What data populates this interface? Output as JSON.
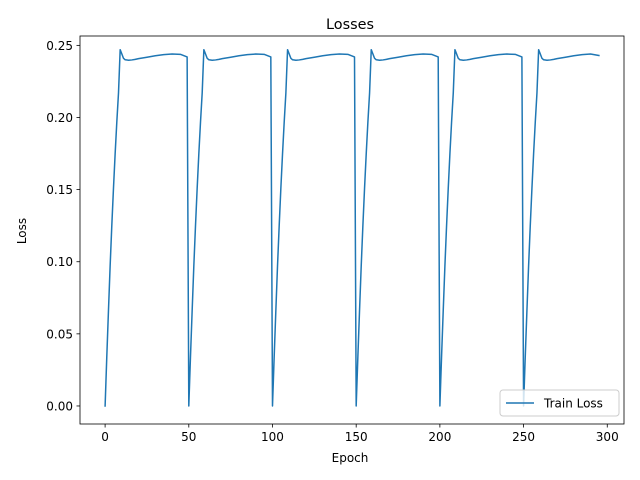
{
  "chart_data": {
    "type": "line",
    "title": "Losses",
    "xlabel": "Epoch",
    "ylabel": "Loss",
    "xlim": [
      -15,
      310
    ],
    "ylim": [
      -0.0125,
      0.2565
    ],
    "xticks": [
      0,
      50,
      100,
      150,
      200,
      250,
      300
    ],
    "yticks": [
      0.0,
      0.05,
      0.1,
      0.15,
      0.2,
      0.25
    ],
    "ytick_labels": [
      "0.00",
      "0.05",
      "0.10",
      "0.15",
      "0.20",
      "0.25"
    ],
    "grid": false,
    "legend_position": "lower-right",
    "series": [
      {
        "name": "Train Loss",
        "color": "#1f77b4",
        "x": [
          0,
          1,
          2,
          3,
          4,
          5,
          6,
          7,
          8,
          9,
          10,
          11,
          12,
          14,
          16,
          18,
          20,
          25,
          30,
          35,
          40,
          45,
          49,
          50,
          51,
          52,
          53,
          54,
          55,
          56,
          57,
          58,
          59,
          60,
          61,
          62,
          64,
          66,
          68,
          70,
          75,
          80,
          85,
          90,
          95,
          99,
          100,
          101,
          102,
          103,
          104,
          105,
          106,
          107,
          108,
          109,
          110,
          111,
          112,
          114,
          116,
          118,
          120,
          125,
          130,
          135,
          140,
          145,
          149,
          150,
          151,
          152,
          153,
          154,
          155,
          156,
          157,
          158,
          159,
          160,
          161,
          162,
          164,
          166,
          168,
          170,
          175,
          180,
          185,
          190,
          195,
          199,
          200,
          201,
          202,
          203,
          204,
          205,
          206,
          207,
          208,
          209,
          210,
          211,
          212,
          214,
          216,
          218,
          220,
          225,
          230,
          235,
          240,
          245,
          249,
          250,
          251,
          252,
          253,
          254,
          255,
          256,
          257,
          258,
          259,
          260,
          261,
          262,
          264,
          266,
          268,
          270,
          275,
          280,
          285,
          290,
          295
        ],
        "y": [
          0.0,
          0.034,
          0.066,
          0.097,
          0.125,
          0.151,
          0.175,
          0.197,
          0.217,
          0.247,
          0.244,
          0.241,
          0.24,
          0.2397,
          0.2399,
          0.2403,
          0.2408,
          0.2418,
          0.2428,
          0.2436,
          0.244,
          0.2438,
          0.242,
          0.0,
          0.034,
          0.066,
          0.097,
          0.125,
          0.151,
          0.175,
          0.197,
          0.217,
          0.247,
          0.244,
          0.241,
          0.24,
          0.2397,
          0.2399,
          0.2403,
          0.2408,
          0.2418,
          0.2428,
          0.2436,
          0.244,
          0.2438,
          0.242,
          0.0,
          0.034,
          0.066,
          0.097,
          0.125,
          0.151,
          0.175,
          0.197,
          0.217,
          0.247,
          0.244,
          0.241,
          0.24,
          0.2397,
          0.2399,
          0.2403,
          0.2408,
          0.2418,
          0.2428,
          0.2436,
          0.244,
          0.2438,
          0.242,
          0.0,
          0.034,
          0.066,
          0.097,
          0.125,
          0.151,
          0.175,
          0.197,
          0.217,
          0.247,
          0.244,
          0.241,
          0.24,
          0.2397,
          0.2399,
          0.2403,
          0.2408,
          0.2418,
          0.2428,
          0.2436,
          0.244,
          0.2438,
          0.242,
          0.0,
          0.034,
          0.066,
          0.097,
          0.125,
          0.151,
          0.175,
          0.197,
          0.217,
          0.247,
          0.244,
          0.241,
          0.24,
          0.2397,
          0.2399,
          0.2403,
          0.2408,
          0.2418,
          0.2428,
          0.2436,
          0.244,
          0.2438,
          0.242,
          0.0,
          0.034,
          0.066,
          0.097,
          0.125,
          0.151,
          0.175,
          0.197,
          0.217,
          0.247,
          0.244,
          0.241,
          0.24,
          0.2397,
          0.2399,
          0.2403,
          0.2408,
          0.2418,
          0.2428,
          0.2436,
          0.244,
          0.243
        ]
      }
    ]
  }
}
